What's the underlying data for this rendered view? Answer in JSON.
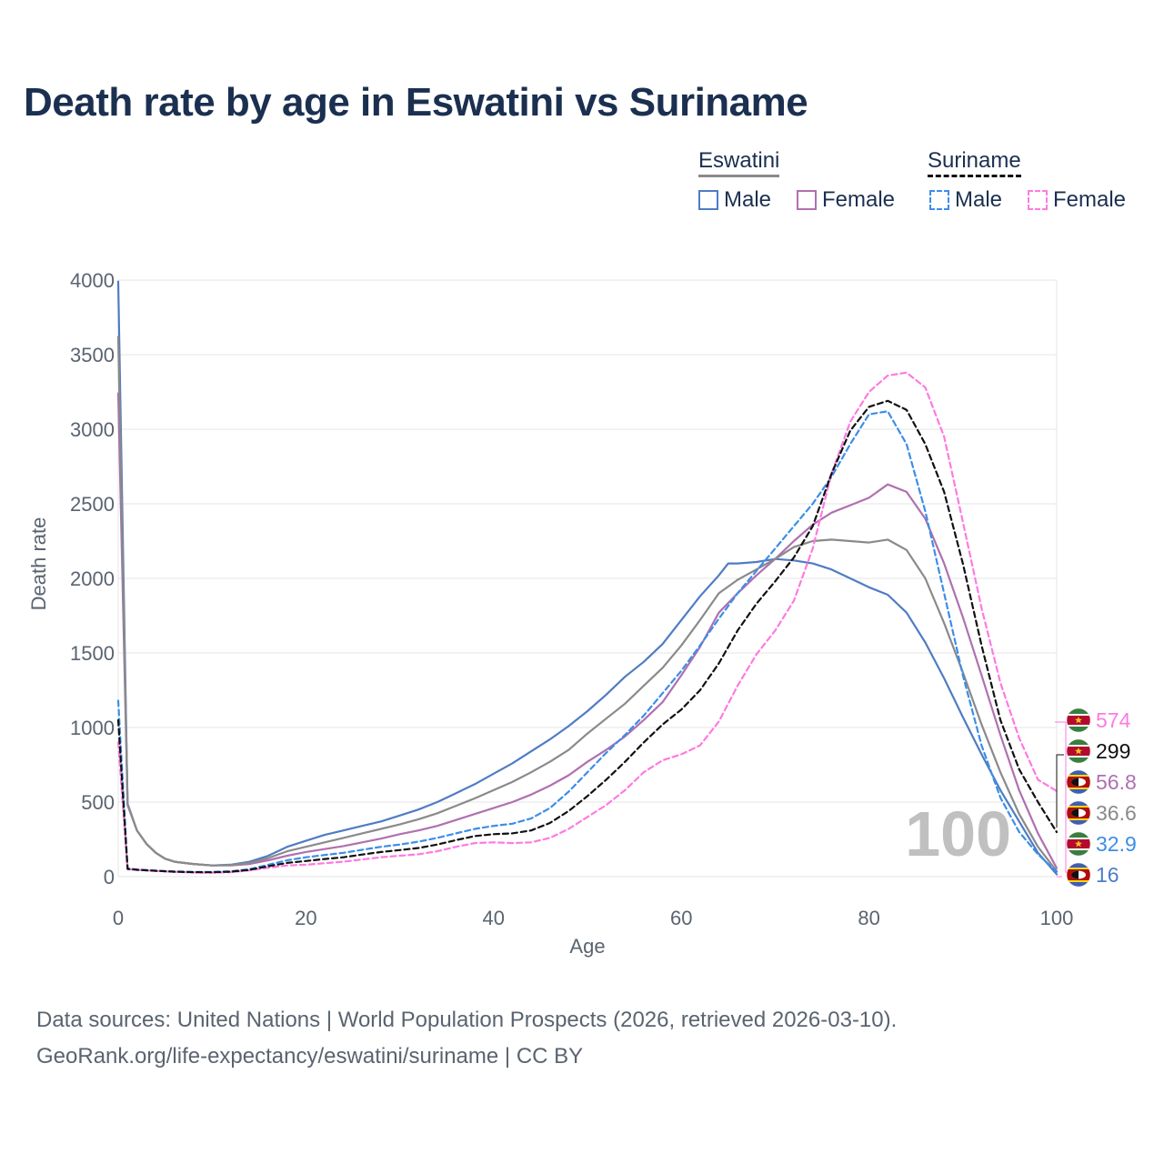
{
  "title": "Death rate by age in Eswatini vs Suriname",
  "legend": {
    "groups": [
      {
        "name": "Eswatini",
        "line_color": "#8a8a8a",
        "line_style": "solid",
        "items": [
          {
            "label": "Male",
            "color": "#4f7cc4",
            "style": "solid"
          },
          {
            "label": "Female",
            "color": "#b070b0",
            "style": "solid"
          }
        ]
      },
      {
        "name": "Suriname",
        "line_color": "#111111",
        "line_style": "dashed",
        "items": [
          {
            "label": "Male",
            "color": "#3b8ee8",
            "style": "dashed"
          },
          {
            "label": "Female",
            "color": "#ff7ae0",
            "style": "dashed"
          }
        ]
      }
    ]
  },
  "chart_data": {
    "type": "line",
    "title": "Death rate by age in Eswatini vs Suriname",
    "xlabel": "Age",
    "ylabel": "Death rate",
    "xlim": [
      0,
      100
    ],
    "ylim": [
      0,
      4000
    ],
    "xticks": [
      0,
      20,
      40,
      60,
      80,
      100
    ],
    "yticks": [
      0,
      500,
      1000,
      1500,
      2000,
      2500,
      3000,
      3500,
      4000
    ],
    "grid": true,
    "annotation": "100",
    "series": [
      {
        "name": "Eswatini Male",
        "color": "#4f7cc4",
        "dash": false,
        "x": [
          0,
          1,
          2,
          3,
          4,
          5,
          6,
          8,
          10,
          12,
          14,
          16,
          18,
          20,
          22,
          24,
          26,
          28,
          30,
          32,
          34,
          36,
          38,
          40,
          42,
          44,
          46,
          48,
          50,
          52,
          54,
          56,
          58,
          60,
          62,
          64,
          65,
          66,
          68,
          70,
          72,
          74,
          76,
          78,
          80,
          82,
          84,
          86,
          88,
          90,
          92,
          94,
          96,
          98,
          100
        ],
        "y": [
          3990,
          480,
          310,
          220,
          160,
          120,
          100,
          85,
          75,
          80,
          100,
          140,
          200,
          240,
          280,
          310,
          340,
          370,
          410,
          450,
          500,
          560,
          620,
          690,
          760,
          840,
          920,
          1010,
          1110,
          1220,
          1340,
          1440,
          1560,
          1720,
          1880,
          2020,
          2100,
          2100,
          2110,
          2130,
          2120,
          2100,
          2060,
          2000,
          1940,
          1890,
          1770,
          1570,
          1330,
          1070,
          820,
          580,
          370,
          160,
          16
        ],
        "end_label": "16"
      },
      {
        "name": "Eswatini Female",
        "color": "#b070b0",
        "dash": false,
        "x": [
          0,
          1,
          2,
          3,
          4,
          5,
          6,
          8,
          10,
          12,
          14,
          16,
          18,
          20,
          22,
          24,
          26,
          28,
          30,
          32,
          34,
          36,
          38,
          40,
          42,
          44,
          46,
          48,
          50,
          52,
          54,
          56,
          58,
          60,
          62,
          64,
          66,
          68,
          70,
          72,
          74,
          76,
          78,
          80,
          82,
          84,
          86,
          88,
          90,
          92,
          94,
          96,
          98,
          100
        ],
        "y": [
          3240,
          490,
          310,
          220,
          160,
          120,
          100,
          85,
          75,
          75,
          85,
          110,
          140,
          165,
          185,
          205,
          230,
          255,
          285,
          310,
          340,
          380,
          420,
          460,
          500,
          550,
          610,
          680,
          770,
          850,
          940,
          1050,
          1170,
          1350,
          1540,
          1770,
          1900,
          2020,
          2130,
          2250,
          2360,
          2440,
          2490,
          2540,
          2630,
          2580,
          2400,
          2100,
          1740,
          1350,
          950,
          580,
          290,
          57
        ],
        "end_label": "56.8"
      },
      {
        "name": "Eswatini Total",
        "color": "#8a8a8a",
        "dash": false,
        "x": [
          0,
          1,
          2,
          3,
          4,
          5,
          6,
          8,
          10,
          12,
          14,
          16,
          18,
          20,
          22,
          24,
          26,
          28,
          30,
          32,
          34,
          36,
          38,
          40,
          42,
          44,
          46,
          48,
          50,
          52,
          54,
          56,
          58,
          60,
          62,
          64,
          66,
          68,
          70,
          72,
          74,
          76,
          78,
          80,
          82,
          84,
          86,
          88,
          90,
          92,
          94,
          96,
          98,
          100
        ],
        "y": [
          3620,
          485,
          310,
          220,
          160,
          120,
          100,
          85,
          75,
          78,
          92,
          125,
          170,
          200,
          230,
          260,
          290,
          320,
          350,
          385,
          425,
          475,
          525,
          580,
          635,
          700,
          770,
          850,
          960,
          1060,
          1160,
          1280,
          1400,
          1550,
          1720,
          1900,
          1990,
          2060,
          2130,
          2210,
          2250,
          2260,
          2250,
          2240,
          2260,
          2190,
          2000,
          1700,
          1370,
          1020,
          700,
          420,
          200,
          36.6
        ],
        "end_label": "36.6"
      },
      {
        "name": "Suriname Male",
        "color": "#3b8ee8",
        "dash": true,
        "x": [
          0,
          1,
          2,
          4,
          6,
          8,
          10,
          12,
          14,
          16,
          18,
          20,
          22,
          24,
          26,
          28,
          30,
          32,
          34,
          36,
          38,
          40,
          42,
          44,
          46,
          48,
          50,
          52,
          54,
          56,
          58,
          60,
          62,
          64,
          66,
          68,
          70,
          72,
          74,
          76,
          78,
          80,
          82,
          84,
          86,
          88,
          90,
          92,
          94,
          96,
          98,
          100
        ],
        "y": [
          1180,
          55,
          48,
          40,
          35,
          32,
          32,
          36,
          50,
          80,
          110,
          130,
          145,
          160,
          180,
          200,
          215,
          235,
          260,
          290,
          320,
          340,
          355,
          390,
          460,
          570,
          700,
          830,
          950,
          1080,
          1230,
          1380,
          1550,
          1730,
          1900,
          2050,
          2200,
          2350,
          2500,
          2680,
          2900,
          3100,
          3120,
          2900,
          2450,
          1900,
          1350,
          880,
          530,
          300,
          150,
          32.9
        ],
        "end_label": "32.9"
      },
      {
        "name": "Suriname Female",
        "color": "#ff7ae0",
        "dash": true,
        "x": [
          0,
          1,
          2,
          4,
          6,
          8,
          10,
          12,
          14,
          16,
          18,
          20,
          22,
          24,
          26,
          28,
          30,
          32,
          34,
          36,
          38,
          40,
          42,
          44,
          46,
          48,
          50,
          52,
          54,
          56,
          58,
          60,
          62,
          64,
          66,
          68,
          70,
          72,
          74,
          76,
          78,
          80,
          82,
          84,
          86,
          88,
          90,
          92,
          94,
          96,
          98,
          100
        ],
        "y": [
          900,
          50,
          45,
          38,
          32,
          28,
          26,
          30,
          42,
          60,
          75,
          80,
          90,
          100,
          115,
          130,
          140,
          150,
          170,
          200,
          225,
          230,
          225,
          230,
          260,
          320,
          400,
          480,
          580,
          700,
          780,
          820,
          880,
          1040,
          1280,
          1490,
          1650,
          1850,
          2200,
          2700,
          3050,
          3250,
          3360,
          3380,
          3280,
          2950,
          2380,
          1800,
          1300,
          930,
          650,
          574
        ],
        "end_label": "574"
      },
      {
        "name": "Suriname Total",
        "color": "#111111",
        "dash": true,
        "x": [
          0,
          1,
          2,
          4,
          6,
          8,
          10,
          12,
          14,
          16,
          18,
          20,
          22,
          24,
          26,
          28,
          30,
          32,
          34,
          36,
          38,
          40,
          42,
          44,
          46,
          48,
          50,
          52,
          54,
          56,
          58,
          60,
          62,
          64,
          66,
          68,
          70,
          72,
          74,
          76,
          78,
          80,
          82,
          84,
          86,
          88,
          90,
          92,
          94,
          96,
          98,
          100
        ],
        "y": [
          1050,
          52,
          46,
          39,
          33,
          30,
          29,
          33,
          46,
          70,
          92,
          105,
          118,
          130,
          148,
          165,
          178,
          192,
          215,
          245,
          272,
          285,
          290,
          310,
          360,
          440,
          540,
          650,
          770,
          900,
          1020,
          1120,
          1250,
          1430,
          1650,
          1830,
          1980,
          2140,
          2350,
          2700,
          2990,
          3150,
          3190,
          3130,
          2900,
          2580,
          2100,
          1550,
          1050,
          720,
          500,
          299
        ],
        "end_label": "299"
      }
    ],
    "end_labels_order": [
      {
        "value": "574",
        "color": "#ff7ae0",
        "flag": "suriname"
      },
      {
        "value": "299",
        "color": "#111111",
        "flag": "suriname"
      },
      {
        "value": "56.8",
        "color": "#b070b0",
        "flag": "eswatini"
      },
      {
        "value": "36.6",
        "color": "#8a8a8a",
        "flag": "eswatini"
      },
      {
        "value": "32.9",
        "color": "#3b8ee8",
        "flag": "suriname"
      },
      {
        "value": "16",
        "color": "#4f7cc4",
        "flag": "eswatini"
      }
    ]
  },
  "source": {
    "line1": "Data sources: United Nations | World Population Prospects (2026, retrieved 2026-03-10).",
    "line2": "GeoRank.org/life-expectancy/eswatini/suriname | CC BY"
  }
}
